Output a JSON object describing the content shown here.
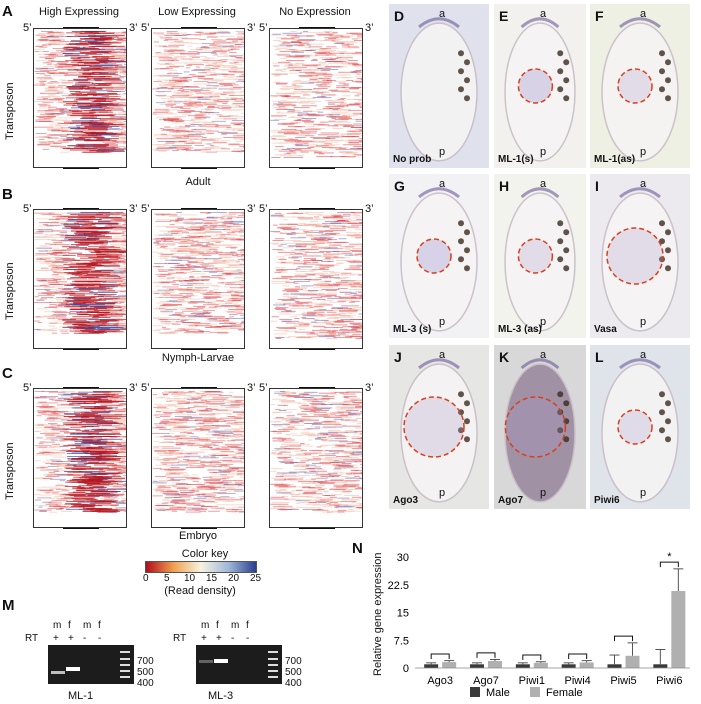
{
  "heatmaps": {
    "panels": [
      {
        "letter": "A",
        "caption": ""
      },
      {
        "letter": "B",
        "caption": "Adult"
      },
      {
        "letter": "C",
        "caption": "Nymph-Larvae"
      }
    ],
    "last_caption": "Embryo",
    "columns": [
      "High Expressing",
      "Low Expressing",
      "No Expression"
    ],
    "end5": "5’",
    "end3": "3’",
    "ylabel": "Transposon",
    "colorkey": {
      "title": "Color key",
      "ticks": [
        "0",
        "5",
        "10",
        "15",
        "20",
        "25"
      ],
      "label": "(Read density)",
      "colors": [
        "#b10c1c",
        "#f0a050",
        "#f7f2e0",
        "#9fb8d8",
        "#2a3f8f"
      ]
    }
  },
  "photos": [
    {
      "letter": "D",
      "name": "No prob",
      "a": "a",
      "p": "p",
      "bg": "#dfe2ec",
      "circle": false
    },
    {
      "letter": "E",
      "name": "ML-1(s)",
      "a": "a",
      "p": "p",
      "bg": "#f3f1ee",
      "circle": true
    },
    {
      "letter": "F",
      "name": "ML-1(as)",
      "a": "a",
      "p": "p",
      "bg": "#eef0e4",
      "circle": true
    },
    {
      "letter": "G",
      "name": "ML-3 (s)",
      "a": "a",
      "p": "p",
      "bg": "#f2f1f4",
      "circle": true
    },
    {
      "letter": "H",
      "name": "ML-3 (as)",
      "a": "a",
      "p": "p",
      "bg": "#f1f3ec",
      "circle": true
    },
    {
      "letter": "I",
      "name": "Vasa",
      "a": "a",
      "p": "p",
      "bg": "#eceaee",
      "circle": true
    },
    {
      "letter": "J",
      "name": "Ago3",
      "a": "a",
      "p": "p",
      "bg": "#e6e6e4",
      "circle": true
    },
    {
      "letter": "K",
      "name": "Ago7",
      "a": "a",
      "p": "p",
      "bg": "#d8d8d8",
      "circle": true
    },
    {
      "letter": "L",
      "name": "Piwi6",
      "a": "a",
      "p": "p",
      "bg": "#dfe3ea",
      "circle": true
    }
  ],
  "gels": {
    "letter": "M",
    "panels": [
      {
        "name": "ML-1",
        "lanes": [
          "m",
          "f",
          "m",
          "f"
        ],
        "rt": [
          "+",
          "+",
          "-",
          "-"
        ]
      },
      {
        "name": "ML-3",
        "lanes": [
          "m",
          "f",
          "m",
          "f"
        ],
        "rt": [
          "+",
          "+",
          "-",
          "-"
        ]
      }
    ],
    "rt_label": "RT",
    "ladder": [
      "700",
      "500",
      "400"
    ]
  },
  "bar": {
    "letter": "N",
    "chart_data": {
      "type": "bar",
      "categories": [
        "Ago3",
        "Ago7",
        "Piwi1",
        "Piwi4",
        "Piwi5",
        "Piwi6"
      ],
      "series": [
        {
          "name": "Male",
          "values": [
            1,
            1,
            1,
            1,
            1,
            1
          ],
          "errors": [
            0.4,
            0.4,
            0.4,
            0.4,
            2.5,
            4.0
          ],
          "color": "#3a3a3a"
        },
        {
          "name": "Female",
          "values": [
            1.6,
            1.9,
            1.4,
            1.5,
            3.3,
            20.8
          ],
          "errors": [
            0.4,
            0.4,
            0.3,
            0.5,
            3.5,
            6.0
          ],
          "color": "#b0b0b0"
        }
      ],
      "ylabel": "Relative gene expression",
      "yticks": [
        "0",
        "7.5",
        "15",
        "22.5",
        "30"
      ],
      "ylim": [
        0,
        30
      ],
      "significance": "*"
    }
  }
}
